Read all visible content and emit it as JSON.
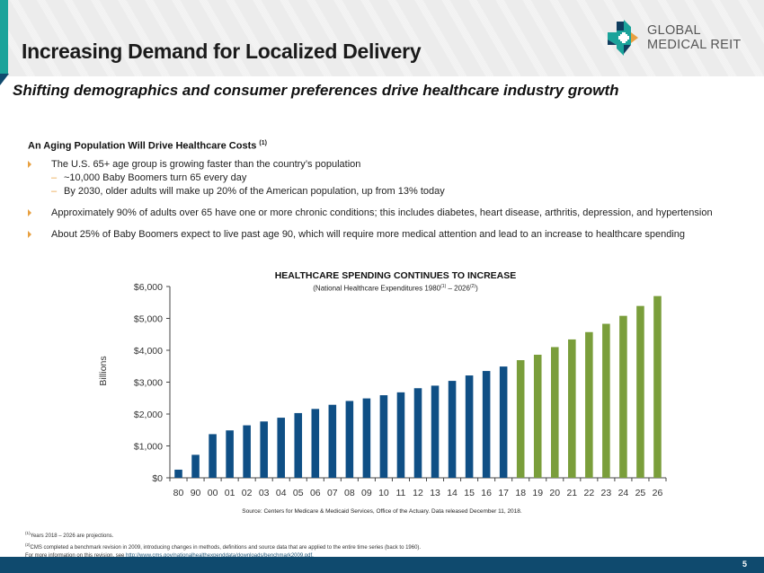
{
  "header": {
    "title": "Increasing Demand for Localized Delivery",
    "logo_line1": "GLOBAL",
    "logo_line2": "MEDICAL REIT"
  },
  "subtitle": "Shifting demographics and consumer preferences drive healthcare industry growth",
  "section": {
    "heading": "An Aging Population Will Drive Healthcare Costs",
    "heading_note": "(1)",
    "bullets": [
      {
        "text": "The U.S. 65+ age group is growing faster than the country’s population",
        "subs": [
          "~10,000 Baby Boomers turn 65 every day",
          "By 2030, older adults will make up 20% of the American population, up from 13% today"
        ]
      },
      {
        "text": "Approximately 90% of adults over 65 have one or more chronic conditions; this includes diabetes, heart disease, arthritis, depression, and hypertension",
        "subs": []
      },
      {
        "text": "About 25% of Baby Boomers expect to live past age 90, which will require more medical attention and lead to an increase to healthcare spending",
        "subs": []
      }
    ]
  },
  "chart_data": {
    "type": "bar",
    "title": "HEALTHCARE SPENDING CONTINUES TO INCREASE",
    "subtitle_prefix": "(National Healthcare Expenditures 1980",
    "subtitle_note1": "(1)",
    "subtitle_mid": " – 2026",
    "subtitle_note2": "(2)",
    "subtitle_suffix": ")",
    "xlabel": "",
    "ylabel": "Billions",
    "ylim": [
      0,
      6000
    ],
    "yticks": [
      0,
      1000,
      2000,
      3000,
      4000,
      5000,
      6000
    ],
    "ytick_labels": [
      "$0",
      "$1,000",
      "$2,000",
      "$3,000",
      "$4,000",
      "$5,000",
      "$6,000"
    ],
    "categories": [
      "80",
      "90",
      "00",
      "01",
      "02",
      "03",
      "04",
      "05",
      "06",
      "07",
      "08",
      "09",
      "10",
      "11",
      "12",
      "13",
      "14",
      "15",
      "16",
      "17",
      "18",
      "19",
      "20",
      "21",
      "22",
      "23",
      "24",
      "25",
      "26"
    ],
    "values": [
      255,
      721,
      1369,
      1487,
      1646,
      1767,
      1885,
      2030,
      2160,
      2290,
      2410,
      2490,
      2590,
      2680,
      2810,
      2890,
      3040,
      3210,
      3350,
      3490,
      3690,
      3860,
      4100,
      4340,
      4570,
      4830,
      5080,
      5390,
      5700
    ],
    "series_colors": {
      "historical": "#0f4f85",
      "projected": "#7a9e3b"
    },
    "projected_from": "18",
    "grid": false,
    "legend": "none"
  },
  "source": "Source: Centers for Medicare & Medicaid Services, Office of the Actuary. Data released December 11, 2018.",
  "notes": {
    "note1_mark": "(1)",
    "note1": "Years 2018 – 2026 are projections.",
    "note2_mark": "(2)",
    "note2": "CMS completed a benchmark revision in 2009, introducing changes in methods, definitions and source data that are applied to the entire time series (back to 1960).",
    "note3": "For more information on this revision, see ",
    "link": "http://www.cms.gov/nationalhealthexpenddata/downloads/benchmark2009.pdf."
  },
  "footer": {
    "page_number": "5"
  },
  "colors": {
    "teal": "#1aa39a",
    "navy": "#0f4a6e",
    "orange": "#e8a040"
  }
}
